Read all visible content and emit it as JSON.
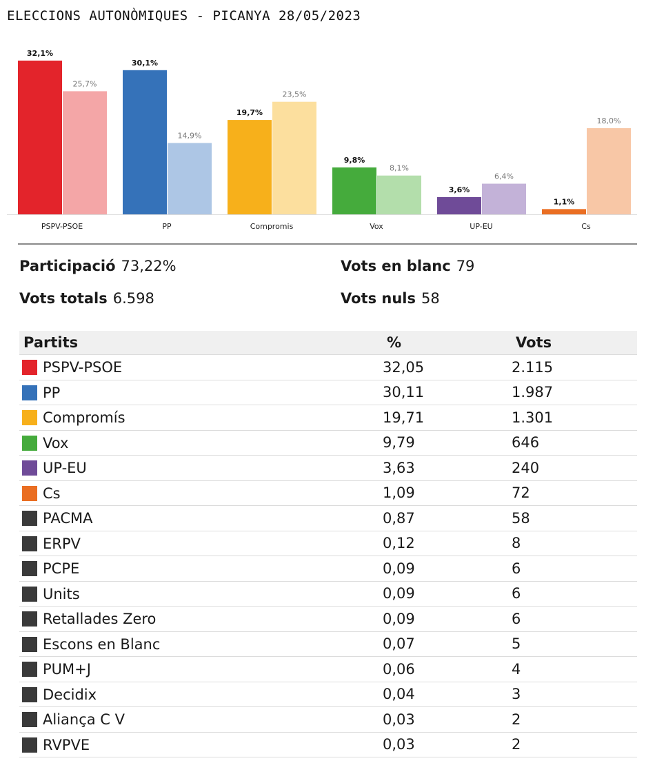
{
  "title": "ELECCIONS AUTONÒMIQUES - PICANYA 28/05/2023",
  "chart_data": {
    "type": "bar",
    "categories": [
      "PSPV-PSOE",
      "PP",
      "Compromis",
      "Vox",
      "UP-EU",
      "Cs"
    ],
    "series": [
      {
        "values": [
          32.1,
          30.1,
          19.7,
          9.8,
          3.6,
          1.1
        ],
        "labels": [
          "32,1%",
          "30,1%",
          "19,7%",
          "9,8%",
          "3,6%",
          "1,1%"
        ]
      },
      {
        "values": [
          25.7,
          14.9,
          23.5,
          8.1,
          6.4,
          18.0
        ],
        "labels": [
          "25,7%",
          "14,9%",
          "23,5%",
          "8,1%",
          "6,4%",
          "18,0%"
        ]
      }
    ],
    "colors_current": [
      "#e3242b",
      "#3572b9",
      "#f7b01b",
      "#45ab3c",
      "#6f4b98",
      "#ea6e22"
    ],
    "colors_previous": [
      "#f4a6a7",
      "#adc6e5",
      "#fcdf9e",
      "#b3deab",
      "#c3b2d8",
      "#f8c7a6"
    ],
    "ylim": [
      0,
      33
    ],
    "grid": false,
    "legend": "none"
  },
  "stats": {
    "participacio_label": "Participació",
    "participacio_value": "73,22%",
    "vots_totals_label": "Vots totals",
    "vots_totals_value": "6.598",
    "vots_blanc_label": "Vots en blanc",
    "vots_blanc_value": "79",
    "vots_nuls_label": "Vots nuls",
    "vots_nuls_value": "58"
  },
  "table": {
    "headers": [
      "Partits",
      "%",
      "Vots"
    ],
    "rows": [
      {
        "party": "PSPV-PSOE",
        "pct": "32,05",
        "vots": "2.115",
        "color": "#e3242b"
      },
      {
        "party": "PP",
        "pct": "30,11",
        "vots": "1.987",
        "color": "#3572b9"
      },
      {
        "party": "Compromís",
        "pct": "19,71",
        "vots": "1.301",
        "color": "#f7b01b"
      },
      {
        "party": "Vox",
        "pct": "9,79",
        "vots": "646",
        "color": "#45ab3c"
      },
      {
        "party": "UP-EU",
        "pct": "3,63",
        "vots": "240",
        "color": "#6f4b98"
      },
      {
        "party": "Cs",
        "pct": "1,09",
        "vots": "72",
        "color": "#ea6e22"
      },
      {
        "party": "PACMA",
        "pct": "0,87",
        "vots": "58",
        "color": "#3a3a3a"
      },
      {
        "party": "ERPV",
        "pct": "0,12",
        "vots": "8",
        "color": "#3a3a3a"
      },
      {
        "party": "PCPE",
        "pct": "0,09",
        "vots": "6",
        "color": "#3a3a3a"
      },
      {
        "party": "Units",
        "pct": "0,09",
        "vots": "6",
        "color": "#3a3a3a"
      },
      {
        "party": "Retallades Zero",
        "pct": "0,09",
        "vots": "6",
        "color": "#3a3a3a"
      },
      {
        "party": "Escons en Blanc",
        "pct": "0,07",
        "vots": "5",
        "color": "#3a3a3a"
      },
      {
        "party": "PUM+J",
        "pct": "0,06",
        "vots": "4",
        "color": "#3a3a3a"
      },
      {
        "party": "Decidix",
        "pct": "0,04",
        "vots": "3",
        "color": "#3a3a3a"
      },
      {
        "party": "Aliança C V",
        "pct": "0,03",
        "vots": "2",
        "color": "#3a3a3a"
      },
      {
        "party": "RVPVE",
        "pct": "0,03",
        "vots": "2",
        "color": "#3a3a3a"
      }
    ]
  }
}
